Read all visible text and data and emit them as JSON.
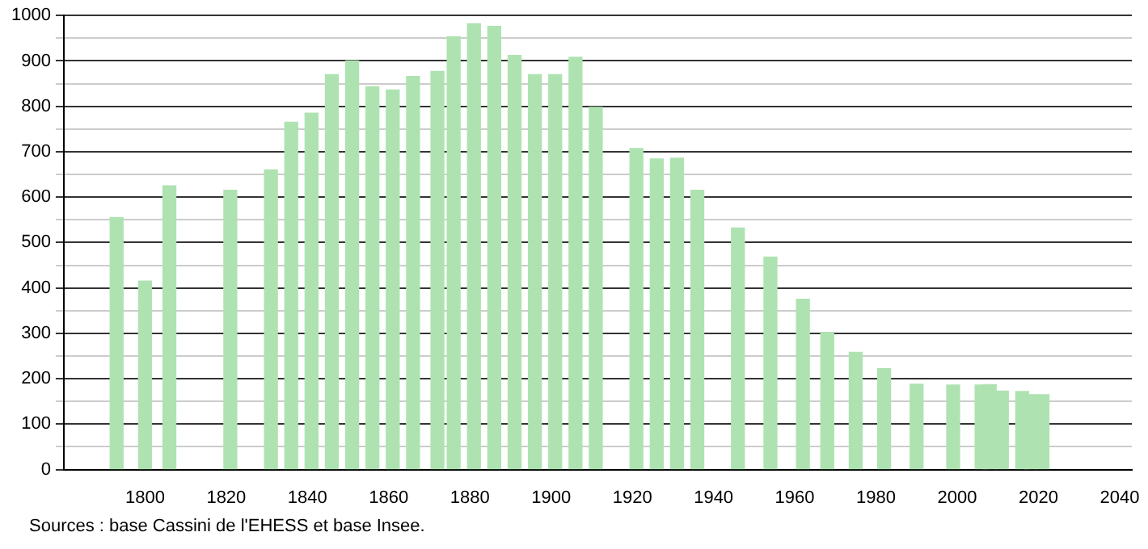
{
  "chart_data": {
    "type": "bar",
    "x": [
      1793,
      1800,
      1806,
      1821,
      1831,
      1836,
      1841,
      1846,
      1851,
      1856,
      1861,
      1866,
      1872,
      1876,
      1881,
      1886,
      1891,
      1896,
      1901,
      1906,
      1911,
      1921,
      1926,
      1931,
      1936,
      1946,
      1954,
      1962,
      1968,
      1975,
      1982,
      1990,
      1999,
      2006,
      2008,
      2011,
      2016,
      2018,
      2021
    ],
    "values": [
      555,
      415,
      625,
      615,
      660,
      765,
      785,
      870,
      900,
      843,
      836,
      866,
      877,
      953,
      982,
      976,
      912,
      870,
      870,
      908,
      798,
      707,
      684,
      686,
      615,
      532,
      468,
      375,
      302,
      258,
      222,
      188,
      186,
      186,
      187,
      173,
      172,
      165,
      165
    ],
    "color": "#aee3b1",
    "xlim": [
      1780,
      2043
    ],
    "xticks": [
      1800,
      1820,
      1840,
      1860,
      1880,
      1900,
      1920,
      1940,
      1960,
      1980,
      2000,
      2020,
      2040
    ],
    "ylim": [
      0,
      1000
    ],
    "yticks": [
      0,
      {
        "value": 50,
        "label": null
      },
      100,
      {
        "value": 150,
        "label": null
      },
      200,
      {
        "value": 250,
        "label": null
      },
      300,
      {
        "value": 350,
        "label": null
      },
      400,
      {
        "value": 450,
        "label": null
      },
      500,
      {
        "value": 550,
        "label": null
      },
      600,
      {
        "value": 650,
        "label": null
      },
      700,
      {
        "value": 750,
        "label": null
      },
      800,
      {
        "value": 850,
        "label": null
      },
      900,
      {
        "value": 950,
        "label": null
      },
      1000
    ],
    "grid": "y",
    "legend": false,
    "annotations": [
      "Sources : base Cassini de l'EHESS et base Insee."
    ]
  }
}
